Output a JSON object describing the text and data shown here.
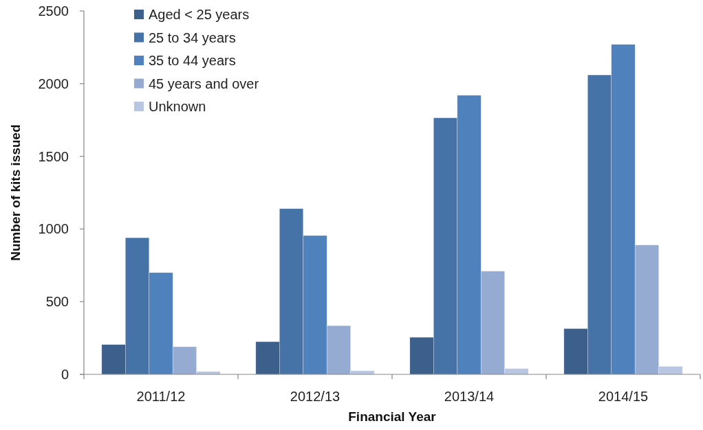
{
  "chart_data": {
    "type": "bar",
    "xlabel": "Financial Year",
    "ylabel": "Number of kits issued",
    "categories": [
      "2011/12",
      "2012/13",
      "2013/14",
      "2014/15"
    ],
    "series": [
      {
        "name": "Aged < 25 years",
        "color": "#3c5f8c",
        "values": [
          205,
          225,
          255,
          315
        ]
      },
      {
        "name": "25 to 34 years",
        "color": "#4572a7",
        "values": [
          940,
          1140,
          1765,
          2060
        ]
      },
      {
        "name": "35 to 44 years",
        "color": "#4f81bd",
        "values": [
          700,
          955,
          1920,
          2270
        ]
      },
      {
        "name": "45 years and over",
        "color": "#95abd1",
        "values": [
          190,
          335,
          710,
          890
        ]
      },
      {
        "name": "Unknown",
        "color": "#b9c6e1",
        "values": [
          20,
          25,
          40,
          55
        ]
      }
    ],
    "ylim": [
      0,
      2500
    ],
    "yticks": [
      0,
      500,
      1000,
      1500,
      2000,
      2500
    ],
    "legend": "top left"
  }
}
